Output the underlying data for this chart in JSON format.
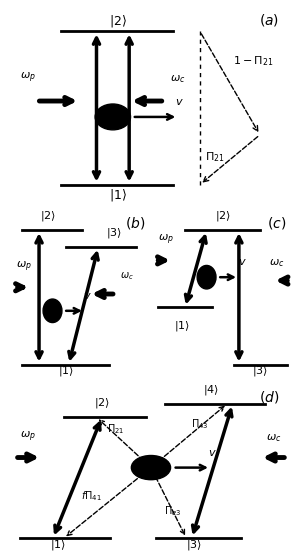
{
  "lw_level": 2.0,
  "lw_trans": 2.5,
  "lw_beam": 3.5,
  "lw_dash": 1.0,
  "atom_r": 0.055,
  "fs_label": 9,
  "fs_state": 9,
  "fs_panel": 10
}
